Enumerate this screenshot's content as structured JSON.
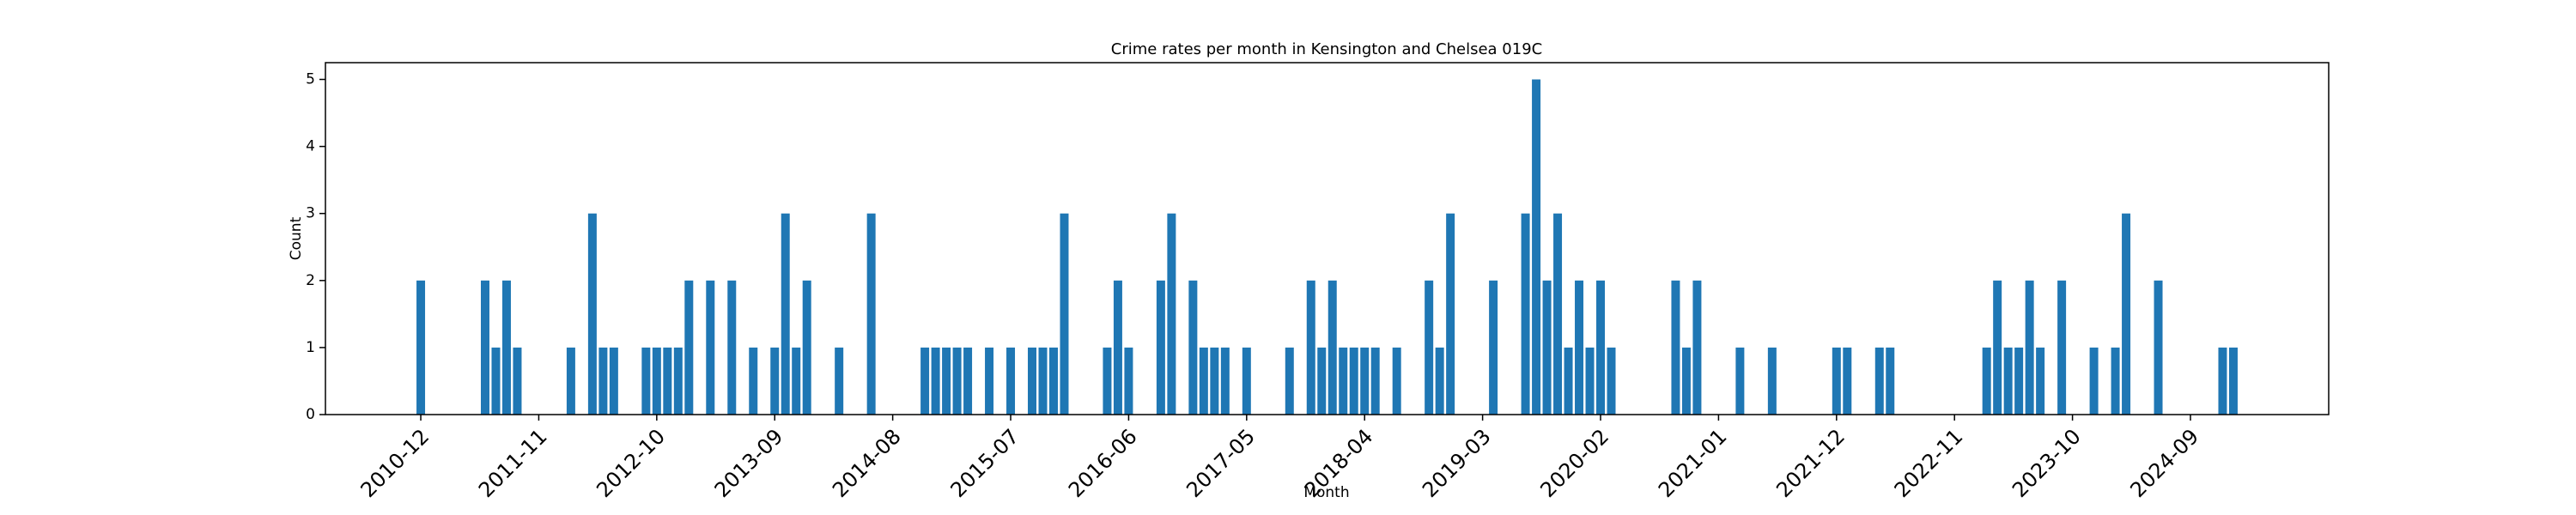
{
  "chart_data": {
    "type": "bar",
    "title": "Crime rates per month in Kensington and Chelsea 019C",
    "xlabel": "Month",
    "ylabel": "Count",
    "categories": [
      "2010-12",
      null,
      null,
      null,
      null,
      null,
      null,
      null,
      null,
      null,
      null,
      "2011-11",
      null,
      null,
      null,
      null,
      null,
      null,
      null,
      null,
      null,
      null,
      "2012-10",
      null,
      null,
      null,
      null,
      null,
      null,
      null,
      null,
      null,
      null,
      "2013-09",
      null,
      null,
      null,
      null,
      null,
      null,
      null,
      null,
      null,
      null,
      "2014-08",
      null,
      null,
      null,
      null,
      null,
      null,
      null,
      null,
      null,
      null,
      "2015-07",
      null,
      null,
      null,
      null,
      null,
      null,
      null,
      null,
      null,
      null,
      "2016-06",
      null,
      null,
      null,
      null,
      null,
      null,
      null,
      null,
      null,
      null,
      "2017-05",
      null,
      null,
      null,
      null,
      null,
      null,
      null,
      null,
      null,
      null,
      "2018-04",
      null,
      null,
      null,
      null,
      null,
      null,
      null,
      null,
      null,
      null,
      "2019-03",
      null,
      null,
      null,
      null,
      null,
      null,
      null,
      null,
      null,
      null,
      "2020-02",
      null,
      null,
      null,
      null,
      null,
      null,
      null,
      null,
      null,
      null,
      "2021-01",
      null,
      null,
      null,
      null,
      null,
      null,
      null,
      null,
      null,
      null,
      "2021-12",
      null,
      null,
      null,
      null,
      null,
      null,
      null,
      null,
      null,
      null,
      "2022-11",
      null,
      null,
      null,
      null,
      null,
      null,
      null,
      null,
      null,
      null,
      "2023-10",
      null,
      null,
      null,
      null,
      null,
      null,
      null,
      null,
      null,
      null,
      "2024-09",
      null,
      null,
      null,
      null
    ],
    "values": [
      2,
      0,
      0,
      0,
      0,
      0,
      2,
      1,
      2,
      1,
      0,
      0,
      0,
      0,
      1,
      0,
      3,
      1,
      1,
      0,
      0,
      1,
      1,
      1,
      1,
      2,
      0,
      2,
      0,
      2,
      0,
      1,
      0,
      1,
      3,
      1,
      2,
      0,
      0,
      1,
      0,
      0,
      3,
      0,
      0,
      0,
      0,
      1,
      1,
      1,
      1,
      1,
      0,
      1,
      0,
      1,
      0,
      1,
      1,
      1,
      3,
      0,
      0,
      0,
      1,
      2,
      1,
      0,
      0,
      2,
      3,
      0,
      2,
      1,
      1,
      1,
      0,
      1,
      0,
      0,
      0,
      1,
      0,
      2,
      1,
      2,
      1,
      1,
      1,
      1,
      0,
      1,
      0,
      0,
      2,
      1,
      3,
      0,
      0,
      0,
      2,
      0,
      0,
      3,
      5,
      2,
      3,
      1,
      2,
      1,
      2,
      1,
      0,
      0,
      0,
      0,
      0,
      2,
      1,
      2,
      0,
      0,
      0,
      1,
      0,
      0,
      1,
      0,
      0,
      0,
      0,
      0,
      1,
      1,
      0,
      0,
      1,
      1,
      0,
      0,
      0,
      0,
      0,
      0,
      0,
      0,
      1,
      2,
      1,
      1,
      2,
      1,
      0,
      2,
      0,
      0,
      1,
      0,
      1,
      3,
      0,
      0,
      2,
      0,
      0,
      0,
      0,
      0,
      1,
      1
    ],
    "color": "#1f77b4",
    "ylim": [
      0,
      5.25
    ],
    "yticks": [
      0,
      1,
      2,
      3,
      4,
      5
    ],
    "grid": false
  }
}
